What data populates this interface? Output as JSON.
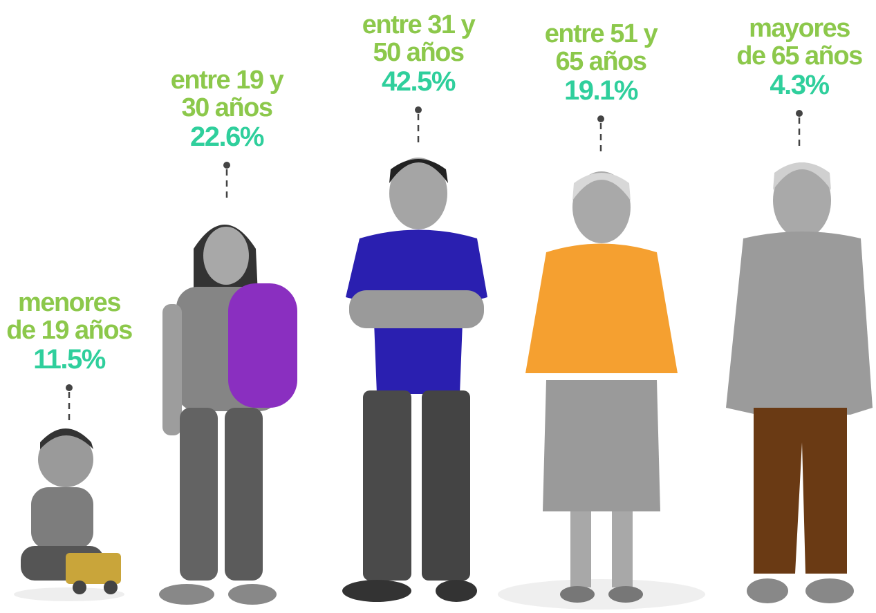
{
  "groups": [
    {
      "label": [
        "menores",
        "de 19 años"
      ],
      "percent": "11.5%"
    },
    {
      "label": [
        "entre 19 y",
        "30 años"
      ],
      "percent": "22.6%"
    },
    {
      "label": [
        "entre 31 y",
        "50 años"
      ],
      "percent": "42.5%"
    },
    {
      "label": [
        "entre 51 y",
        "65 años"
      ],
      "percent": "19.1%"
    },
    {
      "label": [
        "mayores",
        "de 65 años"
      ],
      "percent": "4.3%"
    }
  ]
}
